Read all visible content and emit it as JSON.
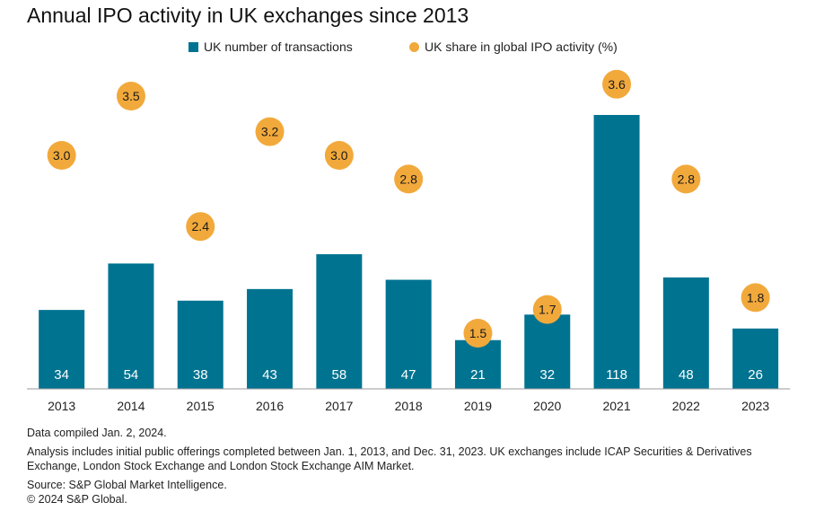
{
  "title": "Annual IPO activity in UK exchanges since 2013",
  "legend": {
    "bars_label": "UK number of transactions",
    "dots_label": "UK share in global IPO activity (%)"
  },
  "colors": {
    "bar": "#007391",
    "dot": "#f2a93b",
    "axis": "#9a9a9a",
    "bar_label": "#ffffff"
  },
  "chart_data": {
    "type": "bar",
    "categories": [
      "2013",
      "2014",
      "2015",
      "2016",
      "2017",
      "2018",
      "2019",
      "2020",
      "2021",
      "2022",
      "2023"
    ],
    "series": [
      {
        "name": "UK number of transactions",
        "type": "bar",
        "values": [
          34,
          54,
          38,
          43,
          58,
          47,
          21,
          32,
          118,
          48,
          26
        ]
      },
      {
        "name": "UK share in global IPO activity (%)",
        "type": "scatter",
        "values": [
          3.0,
          3.5,
          2.4,
          3.2,
          3.0,
          2.8,
          1.5,
          1.7,
          3.6,
          2.8,
          1.8
        ]
      }
    ],
    "value_labels": {
      "bars": [
        "34",
        "54",
        "38",
        "43",
        "58",
        "47",
        "21",
        "32",
        "118",
        "48",
        "26"
      ],
      "dots": [
        "3.0",
        "3.5",
        "2.4",
        "3.2",
        "3.0",
        "2.8",
        "1.5",
        "1.7",
        "3.6",
        "2.8",
        "1.8"
      ]
    },
    "xlabel": "",
    "ylabel": "",
    "grid": false,
    "legend_position": "top"
  },
  "notes": {
    "compiled": "Data compiled Jan. 2, 2024.",
    "analysis": "Analysis includes initial public offerings completed between Jan. 1, 2013, and Dec. 31, 2023. UK exchanges include ICAP Securities & Derivatives Exchange, London Stock Exchange and London Stock Exchange AIM Market.",
    "source": "Source: S&P Global Market Intelligence.",
    "copyright": "© 2024 S&P Global."
  }
}
